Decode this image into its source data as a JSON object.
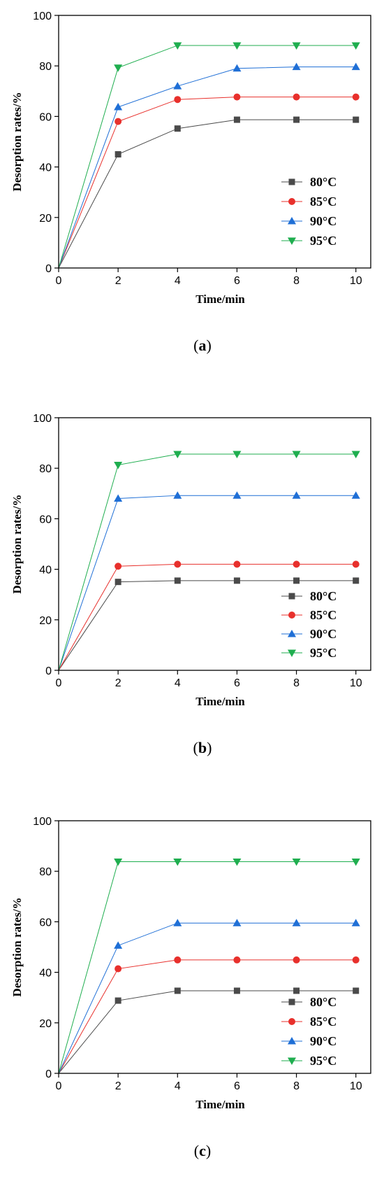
{
  "figure": {
    "colors": {
      "80°C": "#4a4a4a",
      "85°C": "#e8302c",
      "90°C": "#1f6fd6",
      "95°C": "#1fae4f"
    },
    "markers": {
      "80°C": "square",
      "85°C": "circle",
      "90°C": "triangle-up",
      "95°C": "triangle-down"
    },
    "panels": [
      {
        "caption_open": "(",
        "caption_letter": "a",
        "caption_close": ")"
      },
      {
        "caption_open": "(",
        "caption_letter": "b",
        "caption_close": ")"
      },
      {
        "caption_open": "(",
        "caption_letter": "c",
        "caption_close": ")"
      }
    ]
  },
  "chart_data": [
    {
      "type": "line",
      "title": "",
      "xlabel": "Time/min",
      "ylabel": "Desorption rates/%",
      "xlim": [
        0,
        10.5
      ],
      "ylim": [
        0,
        100
      ],
      "xticks": [
        0,
        2,
        4,
        6,
        8,
        10
      ],
      "yticks": [
        0,
        20,
        40,
        60,
        80,
        100
      ],
      "grid": false,
      "legend_position": "right",
      "x": [
        0,
        2,
        4,
        6,
        8,
        10
      ],
      "series": [
        {
          "name": "80°C",
          "values": [
            0,
            45.0,
            55.2,
            58.7,
            58.7,
            58.7
          ]
        },
        {
          "name": "85°C",
          "values": [
            0,
            58.0,
            66.7,
            67.7,
            67.7,
            67.7
          ]
        },
        {
          "name": "90°C",
          "values": [
            0,
            63.7,
            72.0,
            79.0,
            79.6,
            79.6
          ]
        },
        {
          "name": "95°C",
          "values": [
            0,
            79.3,
            88.1,
            88.1,
            88.1,
            88.1
          ]
        }
      ]
    },
    {
      "type": "line",
      "title": "",
      "xlabel": "Time/min",
      "ylabel": "Desorption rates/%",
      "xlim": [
        0,
        10.5
      ],
      "ylim": [
        0,
        100
      ],
      "xticks": [
        0,
        2,
        4,
        6,
        8,
        10
      ],
      "yticks": [
        0,
        20,
        40,
        60,
        80,
        100
      ],
      "grid": false,
      "legend_position": "bottom-right",
      "x": [
        0,
        2,
        4,
        6,
        8,
        10
      ],
      "series": [
        {
          "name": "80°C",
          "values": [
            0,
            35.0,
            35.5,
            35.5,
            35.5,
            35.5
          ]
        },
        {
          "name": "85°C",
          "values": [
            0,
            41.2,
            42.0,
            42.0,
            42.0,
            42.0
          ]
        },
        {
          "name": "90°C",
          "values": [
            0,
            68.0,
            69.2,
            69.2,
            69.2,
            69.2
          ]
        },
        {
          "name": "95°C",
          "values": [
            0,
            81.3,
            85.6,
            85.6,
            85.6,
            85.6
          ]
        }
      ]
    },
    {
      "type": "line",
      "title": "",
      "xlabel": "Time/min",
      "ylabel": "Desorption rates/%",
      "xlim": [
        0,
        10.5
      ],
      "ylim": [
        0,
        100
      ],
      "xticks": [
        0,
        2,
        4,
        6,
        8,
        10
      ],
      "yticks": [
        0,
        20,
        40,
        60,
        80,
        100
      ],
      "grid": false,
      "legend_position": "bottom-right",
      "x": [
        0,
        2,
        4,
        6,
        8,
        10
      ],
      "series": [
        {
          "name": "80°C",
          "values": [
            0,
            28.8,
            32.7,
            32.7,
            32.7,
            32.7
          ]
        },
        {
          "name": "85°C",
          "values": [
            0,
            41.4,
            44.9,
            44.9,
            44.9,
            44.9
          ]
        },
        {
          "name": "90°C",
          "values": [
            0,
            50.6,
            59.5,
            59.5,
            59.5,
            59.5
          ]
        },
        {
          "name": "95°C",
          "values": [
            0,
            83.8,
            83.8,
            83.8,
            83.8,
            83.8
          ]
        }
      ]
    }
  ]
}
